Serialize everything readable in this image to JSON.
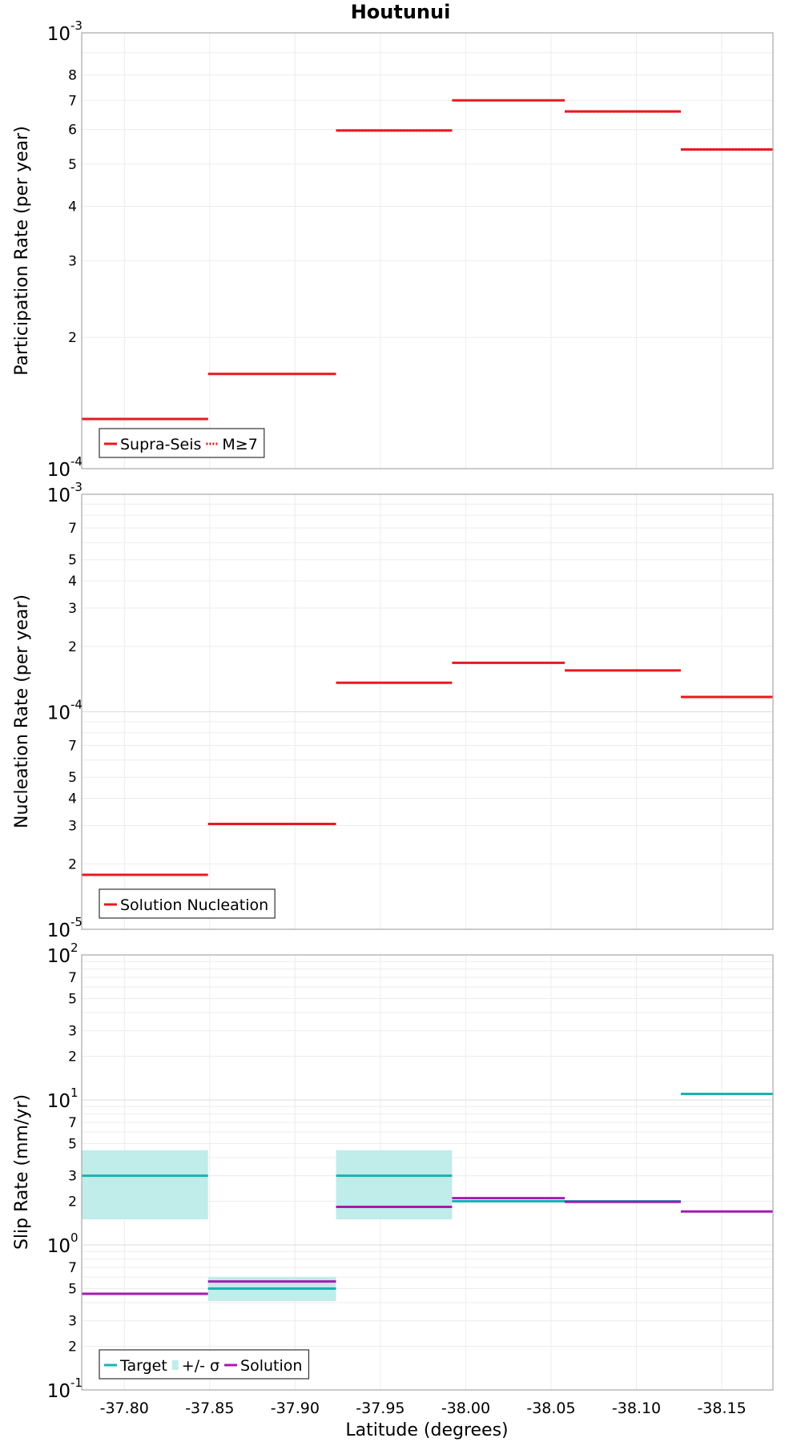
{
  "figure_title": "Houtunui",
  "xlabel": "Latitude (degrees)",
  "x_ticks": [
    {
      "v": -37.8,
      "label": "-37.80"
    },
    {
      "v": -37.85,
      "label": "-37.85"
    },
    {
      "v": -37.9,
      "label": "-37.90"
    },
    {
      "v": -37.95,
      "label": "-37.95"
    },
    {
      "v": -38.0,
      "label": "-38.00"
    },
    {
      "v": -38.05,
      "label": "-38.05"
    },
    {
      "v": -38.1,
      "label": "-38.10"
    },
    {
      "v": -38.15,
      "label": "-38.15"
    }
  ],
  "chart_data": [
    {
      "type": "line",
      "name": "participation",
      "title": "Houtunui",
      "xlabel": "",
      "ylabel": "Participation Rate (per year)",
      "xlim": [
        -37.775,
        -38.18
      ],
      "ylim": [
        0.0001,
        0.001
      ],
      "yscale": "log",
      "x_reversed": true,
      "grid": true,
      "y_major_ticks": [
        {
          "v": 0.0001,
          "base": "10",
          "exp": "-4"
        },
        {
          "v": 0.001,
          "base": "10",
          "exp": "-3"
        }
      ],
      "y_minor_ticks": [
        {
          "v": 0.0002,
          "label": "2"
        },
        {
          "v": 0.0003,
          "label": "3"
        },
        {
          "v": 0.0004,
          "label": "4"
        },
        {
          "v": 0.0005,
          "label": "5"
        },
        {
          "v": 0.0006,
          "label": "6"
        },
        {
          "v": 0.0007,
          "label": "7"
        },
        {
          "v": 0.0008,
          "label": "8"
        }
      ],
      "y_grid": [
        0.0002,
        0.0003,
        0.0004,
        0.0005,
        0.0006,
        0.0007,
        0.0008,
        0.0009
      ],
      "legend": {
        "position": "bottom-left",
        "entries": [
          {
            "label": "Supra-Seis",
            "color": "#e8191f",
            "style": "solid"
          },
          {
            "label": "M≥7",
            "color": "#e8191f",
            "style": "dotted"
          }
        ]
      },
      "series": [
        {
          "name": "Supra-Seis",
          "color": "#e8191f",
          "style": "solid",
          "segments": [
            {
              "x0": -37.775,
              "x1": -37.849,
              "y": 0.00013
            },
            {
              "x0": -37.849,
              "x1": -37.924,
              "y": 0.000165
            },
            {
              "x0": -37.924,
              "x1": -37.992,
              "y": 0.000597
            },
            {
              "x0": -37.992,
              "x1": -38.058,
              "y": 0.0007
            },
            {
              "x0": -38.058,
              "x1": -38.126,
              "y": 0.00066
            },
            {
              "x0": -38.126,
              "x1": -38.18,
              "y": 0.00054
            }
          ]
        },
        {
          "name": "M≥7",
          "color": "#e8191f",
          "style": "dotted",
          "segments": [
            {
              "x0": -37.775,
              "x1": -37.849,
              "y": 0.00013
            },
            {
              "x0": -37.924,
              "x1": -37.992,
              "y": 0.000597
            },
            {
              "x0": -38.058,
              "x1": -38.126,
              "y": 0.00066
            },
            {
              "x0": -38.126,
              "x1": -38.18,
              "y": 0.00054
            }
          ]
        }
      ]
    },
    {
      "type": "line",
      "name": "nucleation",
      "title": "",
      "xlabel": "",
      "ylabel": "Nucleation Rate (per year)",
      "xlim": [
        -37.775,
        -38.18
      ],
      "ylim": [
        1e-05,
        0.001
      ],
      "yscale": "log",
      "x_reversed": true,
      "grid": true,
      "y_major_ticks": [
        {
          "v": 1e-05,
          "base": "10",
          "exp": "-5"
        },
        {
          "v": 0.0001,
          "base": "10",
          "exp": "-4"
        },
        {
          "v": 0.001,
          "base": "10",
          "exp": "-3"
        }
      ],
      "y_minor_ticks": [
        {
          "v": 2e-05,
          "label": "2"
        },
        {
          "v": 3e-05,
          "label": "3"
        },
        {
          "v": 4e-05,
          "label": "4"
        },
        {
          "v": 5e-05,
          "label": "5"
        },
        {
          "v": 7e-05,
          "label": "7"
        },
        {
          "v": 0.0002,
          "label": "2"
        },
        {
          "v": 0.0003,
          "label": "3"
        },
        {
          "v": 0.0004,
          "label": "4"
        },
        {
          "v": 0.0005,
          "label": "5"
        },
        {
          "v": 0.0007,
          "label": "7"
        }
      ],
      "y_grid": [
        2e-05,
        3e-05,
        4e-05,
        5e-05,
        6e-05,
        7e-05,
        8e-05,
        9e-05,
        0.0002,
        0.0003,
        0.0004,
        0.0005,
        0.0006,
        0.0007,
        0.0008,
        0.0009
      ],
      "legend": {
        "position": "bottom-left",
        "entries": [
          {
            "label": "Solution Nucleation",
            "color": "#e8191f",
            "style": "solid"
          }
        ]
      },
      "series": [
        {
          "name": "Solution Nucleation",
          "color": "#e8191f",
          "style": "solid",
          "segments": [
            {
              "x0": -37.775,
              "x1": -37.849,
              "y": 1.78e-05
            },
            {
              "x0": -37.849,
              "x1": -37.924,
              "y": 3.05e-05
            },
            {
              "x0": -37.924,
              "x1": -37.992,
              "y": 0.000136
            },
            {
              "x0": -37.992,
              "x1": -38.058,
              "y": 0.000168
            },
            {
              "x0": -38.058,
              "x1": -38.126,
              "y": 0.000155
            },
            {
              "x0": -38.126,
              "x1": -38.18,
              "y": 0.000117
            }
          ]
        }
      ]
    },
    {
      "type": "line",
      "name": "slip",
      "title": "",
      "xlabel": "Latitude (degrees)",
      "ylabel": "Slip Rate (mm/yr)",
      "xlim": [
        -37.775,
        -38.18
      ],
      "ylim": [
        0.1,
        100
      ],
      "yscale": "log",
      "x_reversed": true,
      "grid": true,
      "y_major_ticks": [
        {
          "v": 0.1,
          "base": "10",
          "exp": "-1"
        },
        {
          "v": 1,
          "base": "10",
          "exp": "0"
        },
        {
          "v": 10,
          "base": "10",
          "exp": "1"
        },
        {
          "v": 100,
          "base": "10",
          "exp": "2"
        }
      ],
      "y_minor_ticks": [
        {
          "v": 0.2,
          "label": "2"
        },
        {
          "v": 0.3,
          "label": "3"
        },
        {
          "v": 0.5,
          "label": "5"
        },
        {
          "v": 0.7,
          "label": "7"
        },
        {
          "v": 2,
          "label": "2"
        },
        {
          "v": 3,
          "label": "3"
        },
        {
          "v": 5,
          "label": "5"
        },
        {
          "v": 7,
          "label": "7"
        },
        {
          "v": 20,
          "label": "2"
        },
        {
          "v": 30,
          "label": "3"
        },
        {
          "v": 50,
          "label": "5"
        },
        {
          "v": 70,
          "label": "7"
        }
      ],
      "y_grid": [
        0.2,
        0.3,
        0.4,
        0.5,
        0.6,
        0.7,
        0.8,
        0.9,
        2,
        3,
        4,
        5,
        6,
        7,
        8,
        9,
        20,
        30,
        40,
        50,
        60,
        70,
        80,
        90
      ],
      "legend": {
        "position": "bottom-left",
        "entries": [
          {
            "label": "Target",
            "color": "#19b2b2",
            "style": "solid"
          },
          {
            "label": "+/- σ",
            "color": "#c0ecea",
            "style": "box"
          },
          {
            "label": "Solution",
            "color": "#a61ab3",
            "style": "solid"
          }
        ]
      },
      "bands": [
        {
          "name": "+/- σ",
          "color": "#c0ecea",
          "regions": [
            {
              "x0": -37.775,
              "x1": -37.849,
              "y0": 1.5,
              "y1": 4.5
            },
            {
              "x0": -37.849,
              "x1": -37.924,
              "y0": 0.41,
              "y1": 0.6
            },
            {
              "x0": -37.924,
              "x1": -37.992,
              "y0": 1.5,
              "y1": 4.5
            }
          ]
        }
      ],
      "series": [
        {
          "name": "Target",
          "color": "#19b2b2",
          "style": "solid",
          "segments": [
            {
              "x0": -37.775,
              "x1": -37.849,
              "y": 3.0
            },
            {
              "x0": -37.849,
              "x1": -37.924,
              "y": 0.5
            },
            {
              "x0": -37.924,
              "x1": -37.992,
              "y": 3.0
            },
            {
              "x0": -37.992,
              "x1": -38.058,
              "y": 2.0
            },
            {
              "x0": -38.058,
              "x1": -38.126,
              "y": 2.0
            },
            {
              "x0": -38.126,
              "x1": -38.18,
              "y": 11.0
            }
          ]
        },
        {
          "name": "Solution",
          "color": "#a61ab3",
          "style": "solid",
          "segments": [
            {
              "x0": -37.775,
              "x1": -37.849,
              "y": 0.46
            },
            {
              "x0": -37.849,
              "x1": -37.924,
              "y": 0.56
            },
            {
              "x0": -37.924,
              "x1": -37.992,
              "y": 1.83
            },
            {
              "x0": -37.992,
              "x1": -38.058,
              "y": 2.1
            },
            {
              "x0": -38.058,
              "x1": -38.126,
              "y": 1.98
            },
            {
              "x0": -38.126,
              "x1": -38.18,
              "y": 1.7
            }
          ]
        }
      ]
    }
  ]
}
